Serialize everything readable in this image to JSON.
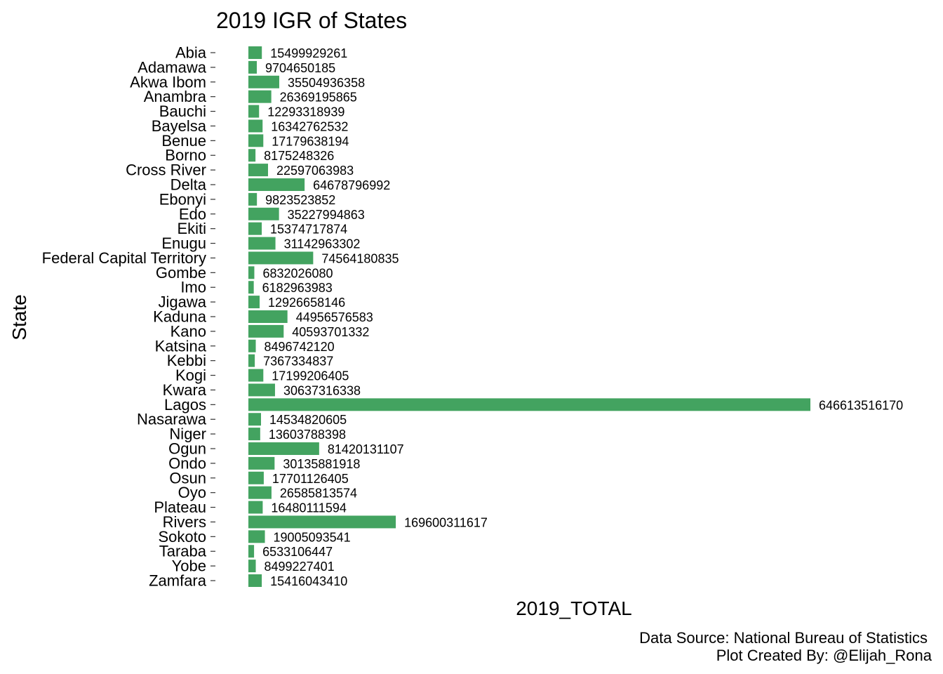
{
  "chart_data": {
    "type": "bar",
    "orientation": "horizontal",
    "title": "2019 IGR of States",
    "xlabel": "2019_TOTAL",
    "ylabel": "State",
    "bar_color": "#43A360",
    "grid": false,
    "legend": "none",
    "categories": [
      "Abia",
      "Adamawa",
      "Akwa Ibom",
      "Anambra",
      "Bauchi",
      "Bayelsa",
      "Benue",
      "Borno",
      "Cross River",
      "Delta",
      "Ebonyi",
      "Edo",
      "Ekiti",
      "Enugu",
      "Federal Capital Territory",
      "Gombe",
      "Imo",
      "Jigawa",
      "Kaduna",
      "Kano",
      "Katsina",
      "Kebbi",
      "Kogi",
      "Kwara",
      "Lagos",
      "Nasarawa",
      "Niger",
      "Ogun",
      "Ondo",
      "Osun",
      "Oyo",
      "Plateau",
      "Rivers",
      "Sokoto",
      "Taraba",
      "Yobe",
      "Zamfara"
    ],
    "values": [
      15499929261,
      9704650185,
      35504936358,
      26369195865,
      12293318939,
      16342762532,
      17179638194,
      8175248326,
      22597063983,
      64678796992,
      9823523852,
      35227994863,
      15374717874,
      31142963302,
      74564180835,
      6832026080,
      6182963983,
      12926658146,
      44956576583,
      40593701332,
      8496742120,
      7367334837,
      17199206405,
      30637316338,
      646613516170,
      14534820605,
      13603788398,
      81420131107,
      30135881918,
      17701126405,
      26585813574,
      16480111594,
      169600311617,
      19005093541,
      6533106447,
      8499227401,
      15416043410
    ],
    "data_labels": [
      "15499929261",
      "9704650185",
      "35504936358",
      "26369195865",
      "12293318939",
      "16342762532",
      "17179638194",
      "8175248326",
      "22597063983",
      "64678796992",
      "9823523852",
      "35227994863",
      "15374717874",
      "31142963302",
      "74564180835",
      "6832026080",
      "6182963983",
      "12926658146",
      "44956576583",
      "40593701332",
      "8496742120",
      "7367334837",
      "17199206405",
      "30637316338",
      "646613516170",
      "14534820605",
      "13603788398",
      "81420131107",
      "30135881918",
      "17701126405",
      "26585813574",
      "16480111594",
      "169600311617",
      "19005093541",
      "6533106447",
      "8499227401",
      "15416043410"
    ],
    "xlim": [
      0,
      646613516170
    ]
  },
  "caption": {
    "line1": "Data Source: National Bureau of Statistics",
    "line2": "Plot Created By: @Elijah_Rona"
  }
}
